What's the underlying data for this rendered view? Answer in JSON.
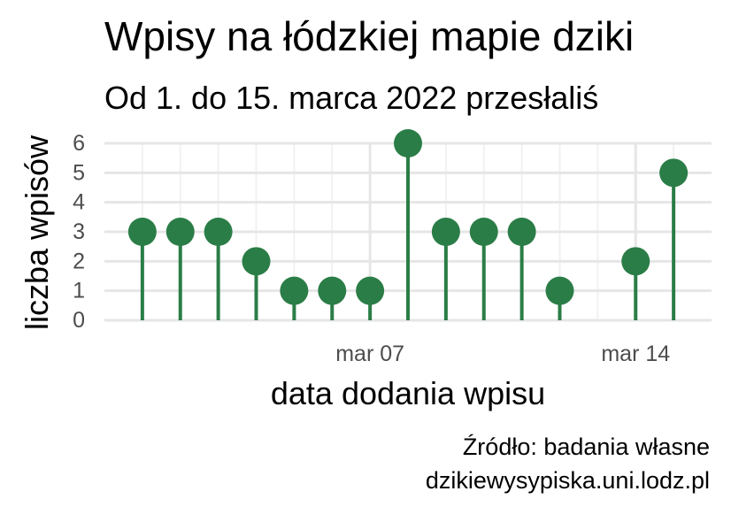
{
  "chart_data": {
    "type": "lollipop",
    "title": "Wpisy na łódzkiej mapie dziki",
    "subtitle": "Od 1. do 15. marca 2022 przesłaliś",
    "xlabel": "data dodania wpisu",
    "ylabel": "liczba wpisów",
    "caption_lines": [
      "Źródło: badania własne",
      "dzikiewysypiska.uni.lodz.pl"
    ],
    "x": [
      "2022-03-01",
      "2022-03-02",
      "2022-03-03",
      "2022-03-04",
      "2022-03-05",
      "2022-03-06",
      "2022-03-07",
      "2022-03-08",
      "2022-03-09",
      "2022-03-10",
      "2022-03-11",
      "2022-03-12",
      "2022-03-14",
      "2022-03-15"
    ],
    "values": [
      3,
      3,
      3,
      2,
      1,
      1,
      1,
      6,
      3,
      3,
      3,
      1,
      2,
      5
    ],
    "xlim": [
      "2022-02-28",
      "2022-03-16"
    ],
    "ylim": [
      0,
      6
    ],
    "y_ticks": [
      0,
      1,
      2,
      3,
      4,
      5,
      6
    ],
    "x_ticks": [
      {
        "date": "2022-03-07",
        "label": "mar 07"
      },
      {
        "date": "2022-03-14",
        "label": "mar 14"
      }
    ],
    "grid": true,
    "colors": {
      "marker": "#2a7d46",
      "grid_major": "#e6e6e6",
      "grid_minor": "#f1f1f1",
      "tick_text": "#4d4d4d"
    }
  }
}
